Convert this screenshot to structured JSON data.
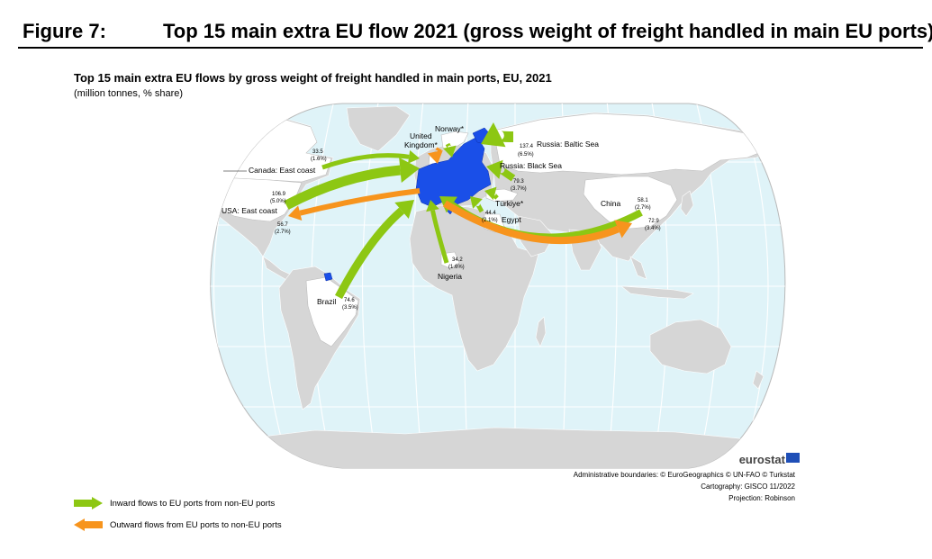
{
  "header": {
    "figure_number": "Figure 7:",
    "figure_title": "Top 15 main extra EU flow 2021 (gross weight of freight handled in main EU ports)"
  },
  "map": {
    "title": "Top 15 main extra EU flows by gross weight of freight handled in main ports, EU, 2021",
    "subtitle": "(million tonnes, % share)",
    "colors": {
      "ocean": "#dff3f8",
      "land": "#d6d6d6",
      "eu": "#1a4fe8",
      "inward": "#8dc713",
      "outward": "#f7941d"
    },
    "places": {
      "norway": "Norway*",
      "uk_line1": "United",
      "uk_line2": "Kingdom*",
      "russia_baltic": "Russia: Baltic Sea",
      "russia_black": "Russia: Black Sea",
      "canada": "Canada: East coast",
      "usa": "USA: East coast",
      "turkiye": "Türkiye*",
      "egypt": "Egypt",
      "china": "China",
      "nigeria": "Nigeria",
      "brazil": "Brazil"
    },
    "values": {
      "canada_v": "33.5",
      "canada_p": "(1.6%)",
      "usa_in_v": "106.9",
      "usa_in_p": "(5.0%)",
      "usa_out_v": "56.7",
      "usa_out_p": "(2.7%)",
      "baltic_v": "137.4",
      "baltic_p": "(6.5%)",
      "black_v": "79.3",
      "black_p": "(3.7%)",
      "egypt_v": "44.4",
      "egypt_p": "(2.1%)",
      "china_in_v": "58.1",
      "china_in_p": "(2.7%)",
      "china_out_v": "72.9",
      "china_out_p": "(3.4%)",
      "nigeria_v": "34.2",
      "nigeria_p": "(1.6%)",
      "brazil_v": "74.6",
      "brazil_p": "(3.5%)"
    }
  },
  "branding": {
    "logo_text": "eurostat",
    "credits": [
      "Administrative boundaries: © EuroGeographics © UN-FAO © Turkstat",
      "Cartography: GISCO 11/2022",
      "Projection: Robinson"
    ]
  },
  "legend": {
    "inward": "Inward flows to EU ports from non-EU ports",
    "outward": "Outward flows from EU ports to non-EU ports"
  }
}
